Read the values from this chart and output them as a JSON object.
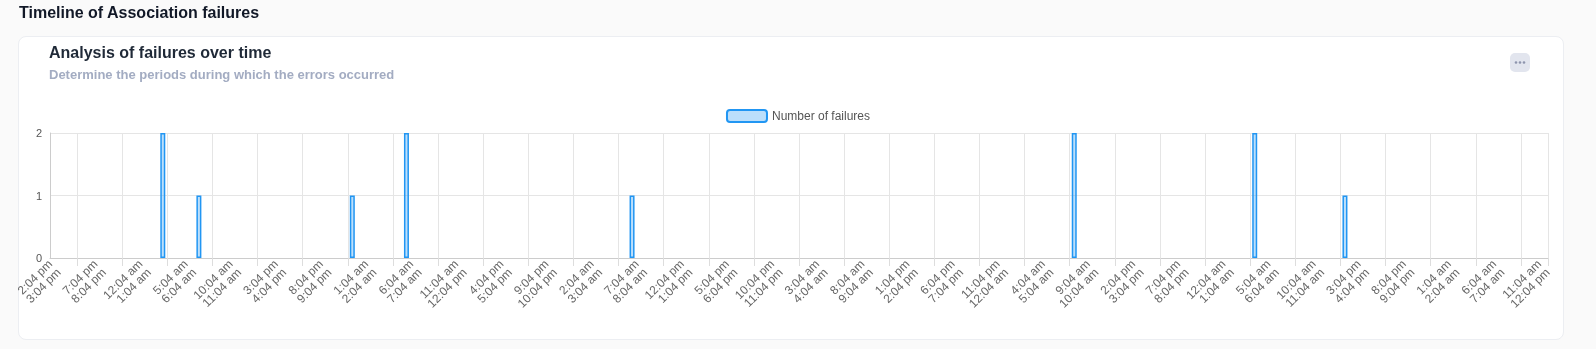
{
  "chart_data": {
    "type": "bar",
    "title": "Analysis of failures over time",
    "subtitle": "Determine the periods during which the errors occurred",
    "annotations": [
      "Timeline of Association failures"
    ],
    "categories": [
      "2:04 pm\n3:04 pm",
      null,
      null,
      null,
      null,
      "7:04 pm\n8:04 pm",
      null,
      null,
      null,
      null,
      "12:04 am\n1:04 am",
      null,
      null,
      null,
      null,
      "5:04 am\n6:04 am",
      null,
      null,
      null,
      null,
      "10:04 am\n11:04 am",
      null,
      null,
      null,
      null,
      "3:04 pm\n4:04 pm",
      null,
      null,
      null,
      null,
      "8:04 pm\n9:04 pm",
      null,
      null,
      null,
      null,
      "1:04 am\n2:04 am",
      null,
      null,
      null,
      null,
      "6:04 am\n7:04 am",
      null,
      null,
      null,
      null,
      "11:04 am\n12:04 pm",
      null,
      null,
      null,
      null,
      "4:04 pm\n5:04 pm",
      null,
      null,
      null,
      null,
      "9:04 pm\n10:04 pm",
      null,
      null,
      null,
      null,
      "2:04 am\n3:04 am",
      null,
      null,
      null,
      null,
      "7:04 am\n8:04 am",
      null,
      null,
      null,
      null,
      "12:04 pm\n1:04 pm",
      null,
      null,
      null,
      null,
      "5:04 pm\n6:04 pm",
      null,
      null,
      null,
      null,
      "10:04 pm\n11:04 pm",
      null,
      null,
      null,
      null,
      "3:04 am\n4:04 am",
      null,
      null,
      null,
      null,
      "8:04 am\n9:04 am",
      null,
      null,
      null,
      null,
      "1:04 pm\n2:04 pm",
      null,
      null,
      null,
      null,
      "6:04 pm\n7:04 pm",
      null,
      null,
      null,
      null,
      "11:04 pm\n12:04 am",
      null,
      null,
      null,
      null,
      "4:04 am\n5:04 am",
      null,
      null,
      null,
      null,
      "9:04 am\n10:04 am",
      null,
      null,
      null,
      null,
      "2:04 pm\n3:04 pm",
      null,
      null,
      null,
      null,
      "7:04 pm\n8:04 pm",
      null,
      null,
      null,
      null,
      "12:04 am\n1:04 am",
      null,
      null,
      null,
      null,
      "5:04 am\n6:04 am",
      null,
      null,
      null,
      null,
      "10:04 am\n11:04 am",
      null,
      null,
      null,
      null,
      "3:04 pm\n4:04 pm",
      null,
      null,
      null,
      null,
      "8:04 pm\n9:04 pm",
      null,
      null,
      null,
      null,
      "1:04 am\n2:04 am",
      null,
      null,
      null,
      null,
      "6:04 am\n7:04 am",
      null,
      null,
      null,
      null,
      "11:04 am\n12:04 pm"
    ],
    "series": [
      {
        "name": "Number of failures",
        "color": "#2196f3",
        "values": [
          0,
          0,
          0,
          0,
          0,
          0,
          0,
          0,
          0,
          0,
          0,
          0,
          2,
          0,
          0,
          0,
          1,
          0,
          0,
          0,
          0,
          0,
          0,
          0,
          0,
          0,
          0,
          0,
          0,
          0,
          0,
          0,
          0,
          1,
          0,
          0,
          0,
          0,
          0,
          2,
          0,
          0,
          0,
          0,
          0,
          0,
          0,
          0,
          0,
          0,
          0,
          0,
          0,
          0,
          0,
          0,
          0,
          0,
          0,
          0,
          0,
          0,
          0,
          0,
          1,
          0,
          0,
          0,
          0,
          0,
          0,
          0,
          0,
          0,
          0,
          0,
          0,
          0,
          0,
          0,
          0,
          0,
          0,
          0,
          0,
          0,
          0,
          0,
          0,
          0,
          0,
          0,
          0,
          0,
          0,
          0,
          0,
          0,
          0,
          0,
          0,
          0,
          0,
          0,
          0,
          0,
          0,
          0,
          0,
          0,
          0,
          0,
          0,
          2,
          0,
          0,
          0,
          0,
          0,
          0,
          0,
          0,
          0,
          0,
          0,
          0,
          0,
          0,
          0,
          0,
          0,
          0,
          0,
          2,
          0,
          0,
          0,
          0,
          0,
          0,
          0,
          0,
          0,
          1,
          0,
          0,
          0,
          0,
          0,
          0,
          0,
          0,
          0,
          0,
          0,
          0,
          0,
          0,
          0,
          0,
          0,
          0,
          0,
          0,
          0,
          0
        ]
      }
    ],
    "ylim": [
      0,
      2
    ],
    "yticks": [
      0,
      1,
      2
    ],
    "grid": true,
    "legend": "top"
  }
}
